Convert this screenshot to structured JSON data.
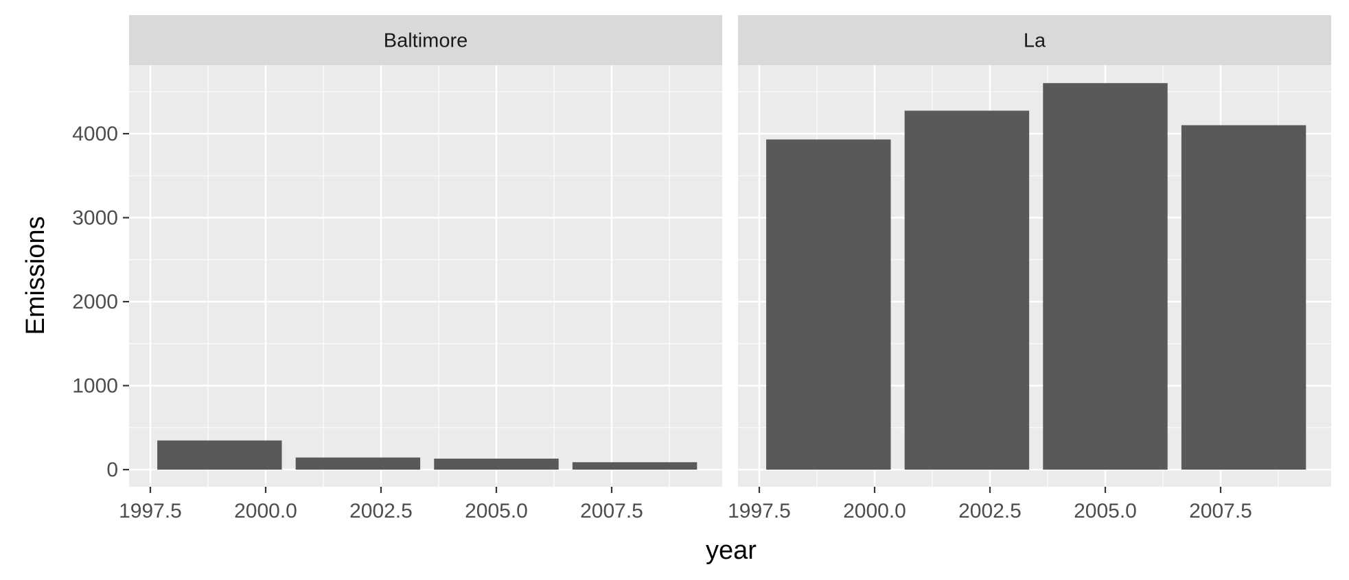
{
  "chart_data": {
    "type": "bar",
    "xlabel": "year",
    "ylabel": "Emissions",
    "xlim": [
      1997.5,
      2009.5
    ],
    "ylim": [
      0,
      4800
    ],
    "x_ticks": [
      1997.5,
      2000.0,
      2002.5,
      2005.0,
      2007.5
    ],
    "x_tick_labels": [
      "1997.5",
      "2000.0",
      "2002.5",
      "2005.0",
      "2007.5"
    ],
    "y_ticks": [
      0,
      1000,
      2000,
      3000,
      4000
    ],
    "y_tick_labels": [
      "0",
      "1000",
      "2000",
      "3000",
      "4000"
    ],
    "grid": true,
    "facets": [
      {
        "label": "Baltimore",
        "x": [
          1999,
          2002,
          2005,
          2008
        ],
        "values": [
          347,
          144,
          131,
          88
        ]
      },
      {
        "label": "La",
        "x": [
          1999,
          2002,
          2005,
          2008
        ],
        "values": [
          3931,
          4274,
          4602,
          4101
        ]
      }
    ],
    "colors": {
      "bar": "#595959",
      "panel_bg": "#ebebeb",
      "strip_bg": "#d9d9d9",
      "grid": "#ffffff",
      "tick_text": "#4d4d4d",
      "tick_mark": "#333333"
    }
  }
}
